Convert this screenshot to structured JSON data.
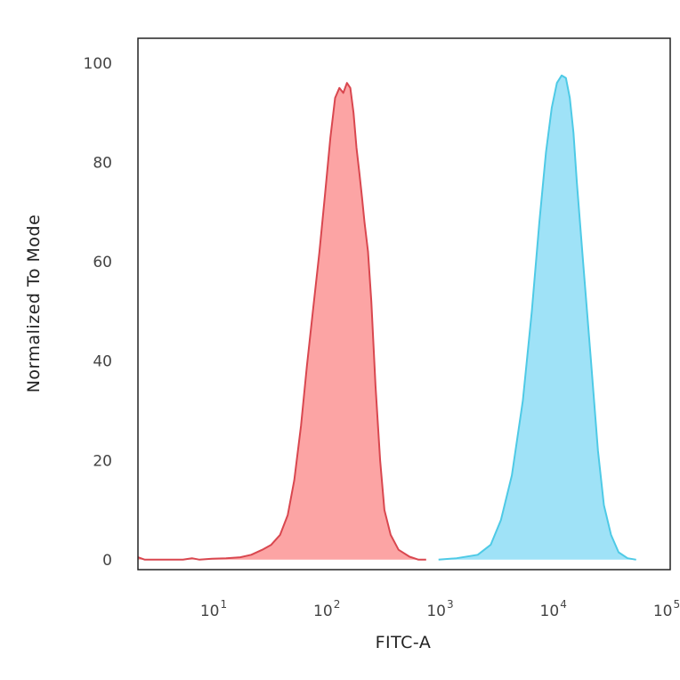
{
  "chart_data": {
    "type": "area",
    "title": "",
    "xlabel": "FITC-A",
    "ylabel": "Normalized To Mode",
    "x_scale": "log",
    "xlim": [
      2,
      100000
    ],
    "ylim": [
      -2,
      105
    ],
    "x_ticks": [
      {
        "value": 10,
        "base": "10",
        "exp": "1"
      },
      {
        "value": 100,
        "base": "10",
        "exp": "2"
      },
      {
        "value": 1000,
        "base": "10",
        "exp": "3"
      },
      {
        "value": 10000,
        "base": "10",
        "exp": "4"
      },
      {
        "value": 100000,
        "base": "10",
        "exp": "5"
      }
    ],
    "y_ticks": [
      {
        "value": 0,
        "label": "0"
      },
      {
        "value": 20,
        "label": "20"
      },
      {
        "value": 40,
        "label": "40"
      },
      {
        "value": 60,
        "label": "60"
      },
      {
        "value": 80,
        "label": "80"
      },
      {
        "value": 100,
        "label": "100"
      }
    ],
    "grid": false,
    "series": [
      {
        "fill": "#fca4a4",
        "stroke": "#d9474f",
        "points": [
          [
            2,
            0.5
          ],
          [
            2.3,
            0
          ],
          [
            3,
            0
          ],
          [
            5,
            0
          ],
          [
            6,
            0.3
          ],
          [
            7,
            0
          ],
          [
            9,
            0.2
          ],
          [
            12,
            0.3
          ],
          [
            16,
            0.5
          ],
          [
            20,
            1
          ],
          [
            25,
            2
          ],
          [
            30,
            3
          ],
          [
            36,
            5
          ],
          [
            42,
            9
          ],
          [
            48,
            16
          ],
          [
            55,
            27
          ],
          [
            62,
            39
          ],
          [
            70,
            50
          ],
          [
            80,
            62
          ],
          [
            90,
            74
          ],
          [
            100,
            85
          ],
          [
            110,
            93
          ],
          [
            120,
            95
          ],
          [
            130,
            94
          ],
          [
            140,
            96
          ],
          [
            150,
            95
          ],
          [
            160,
            90
          ],
          [
            170,
            83
          ],
          [
            180,
            78
          ],
          [
            190,
            73
          ],
          [
            200,
            68
          ],
          [
            215,
            62
          ],
          [
            230,
            52
          ],
          [
            250,
            35
          ],
          [
            275,
            20
          ],
          [
            300,
            10
          ],
          [
            340,
            5
          ],
          [
            400,
            2
          ],
          [
            500,
            0.6
          ],
          [
            600,
            0
          ],
          [
            700,
            0
          ]
        ]
      },
      {
        "fill": "#9fe2f7",
        "stroke": "#4ecae6",
        "points": [
          [
            900,
            0
          ],
          [
            1300,
            0.3
          ],
          [
            2000,
            1
          ],
          [
            2600,
            3
          ],
          [
            3200,
            8
          ],
          [
            4000,
            17
          ],
          [
            5000,
            32
          ],
          [
            6000,
            50
          ],
          [
            7000,
            68
          ],
          [
            8000,
            82
          ],
          [
            9000,
            91
          ],
          [
            10000,
            96
          ],
          [
            11000,
            97.5
          ],
          [
            12000,
            97
          ],
          [
            13000,
            93
          ],
          [
            14000,
            86
          ],
          [
            15000,
            76
          ],
          [
            17000,
            60
          ],
          [
            20000,
            40
          ],
          [
            23000,
            22
          ],
          [
            26000,
            11
          ],
          [
            30000,
            5
          ],
          [
            35000,
            1.5
          ],
          [
            42000,
            0.3
          ],
          [
            50000,
            0
          ]
        ]
      }
    ]
  }
}
